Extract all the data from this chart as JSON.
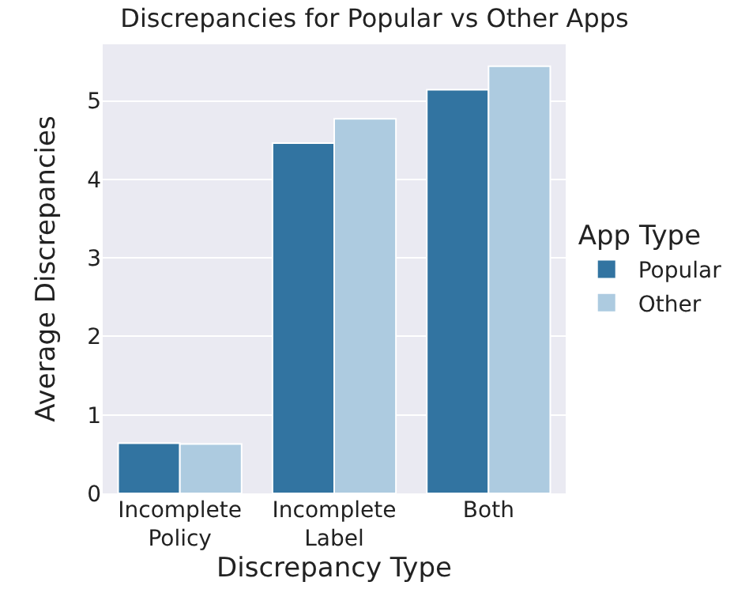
{
  "chart_data": {
    "type": "bar",
    "title": "Discrepancies for Popular vs Other Apps",
    "xlabel": "Discrepancy Type",
    "ylabel": "Average Discrepancies",
    "legend_title": "App Type",
    "categories": [
      "Incomplete\nPolicy",
      "Incomplete\nLabel",
      "Both"
    ],
    "series": [
      {
        "name": "Popular",
        "color": "#3274a1",
        "values": [
          0.64,
          4.46,
          5.14
        ]
      },
      {
        "name": "Other",
        "color": "#adcbe0",
        "values": [
          0.63,
          4.77,
          5.44
        ]
      }
    ],
    "ylim": [
      0,
      5.72
    ],
    "yticks": [
      0,
      1,
      2,
      3,
      4,
      5
    ],
    "grid": "y",
    "legend": "right"
  }
}
